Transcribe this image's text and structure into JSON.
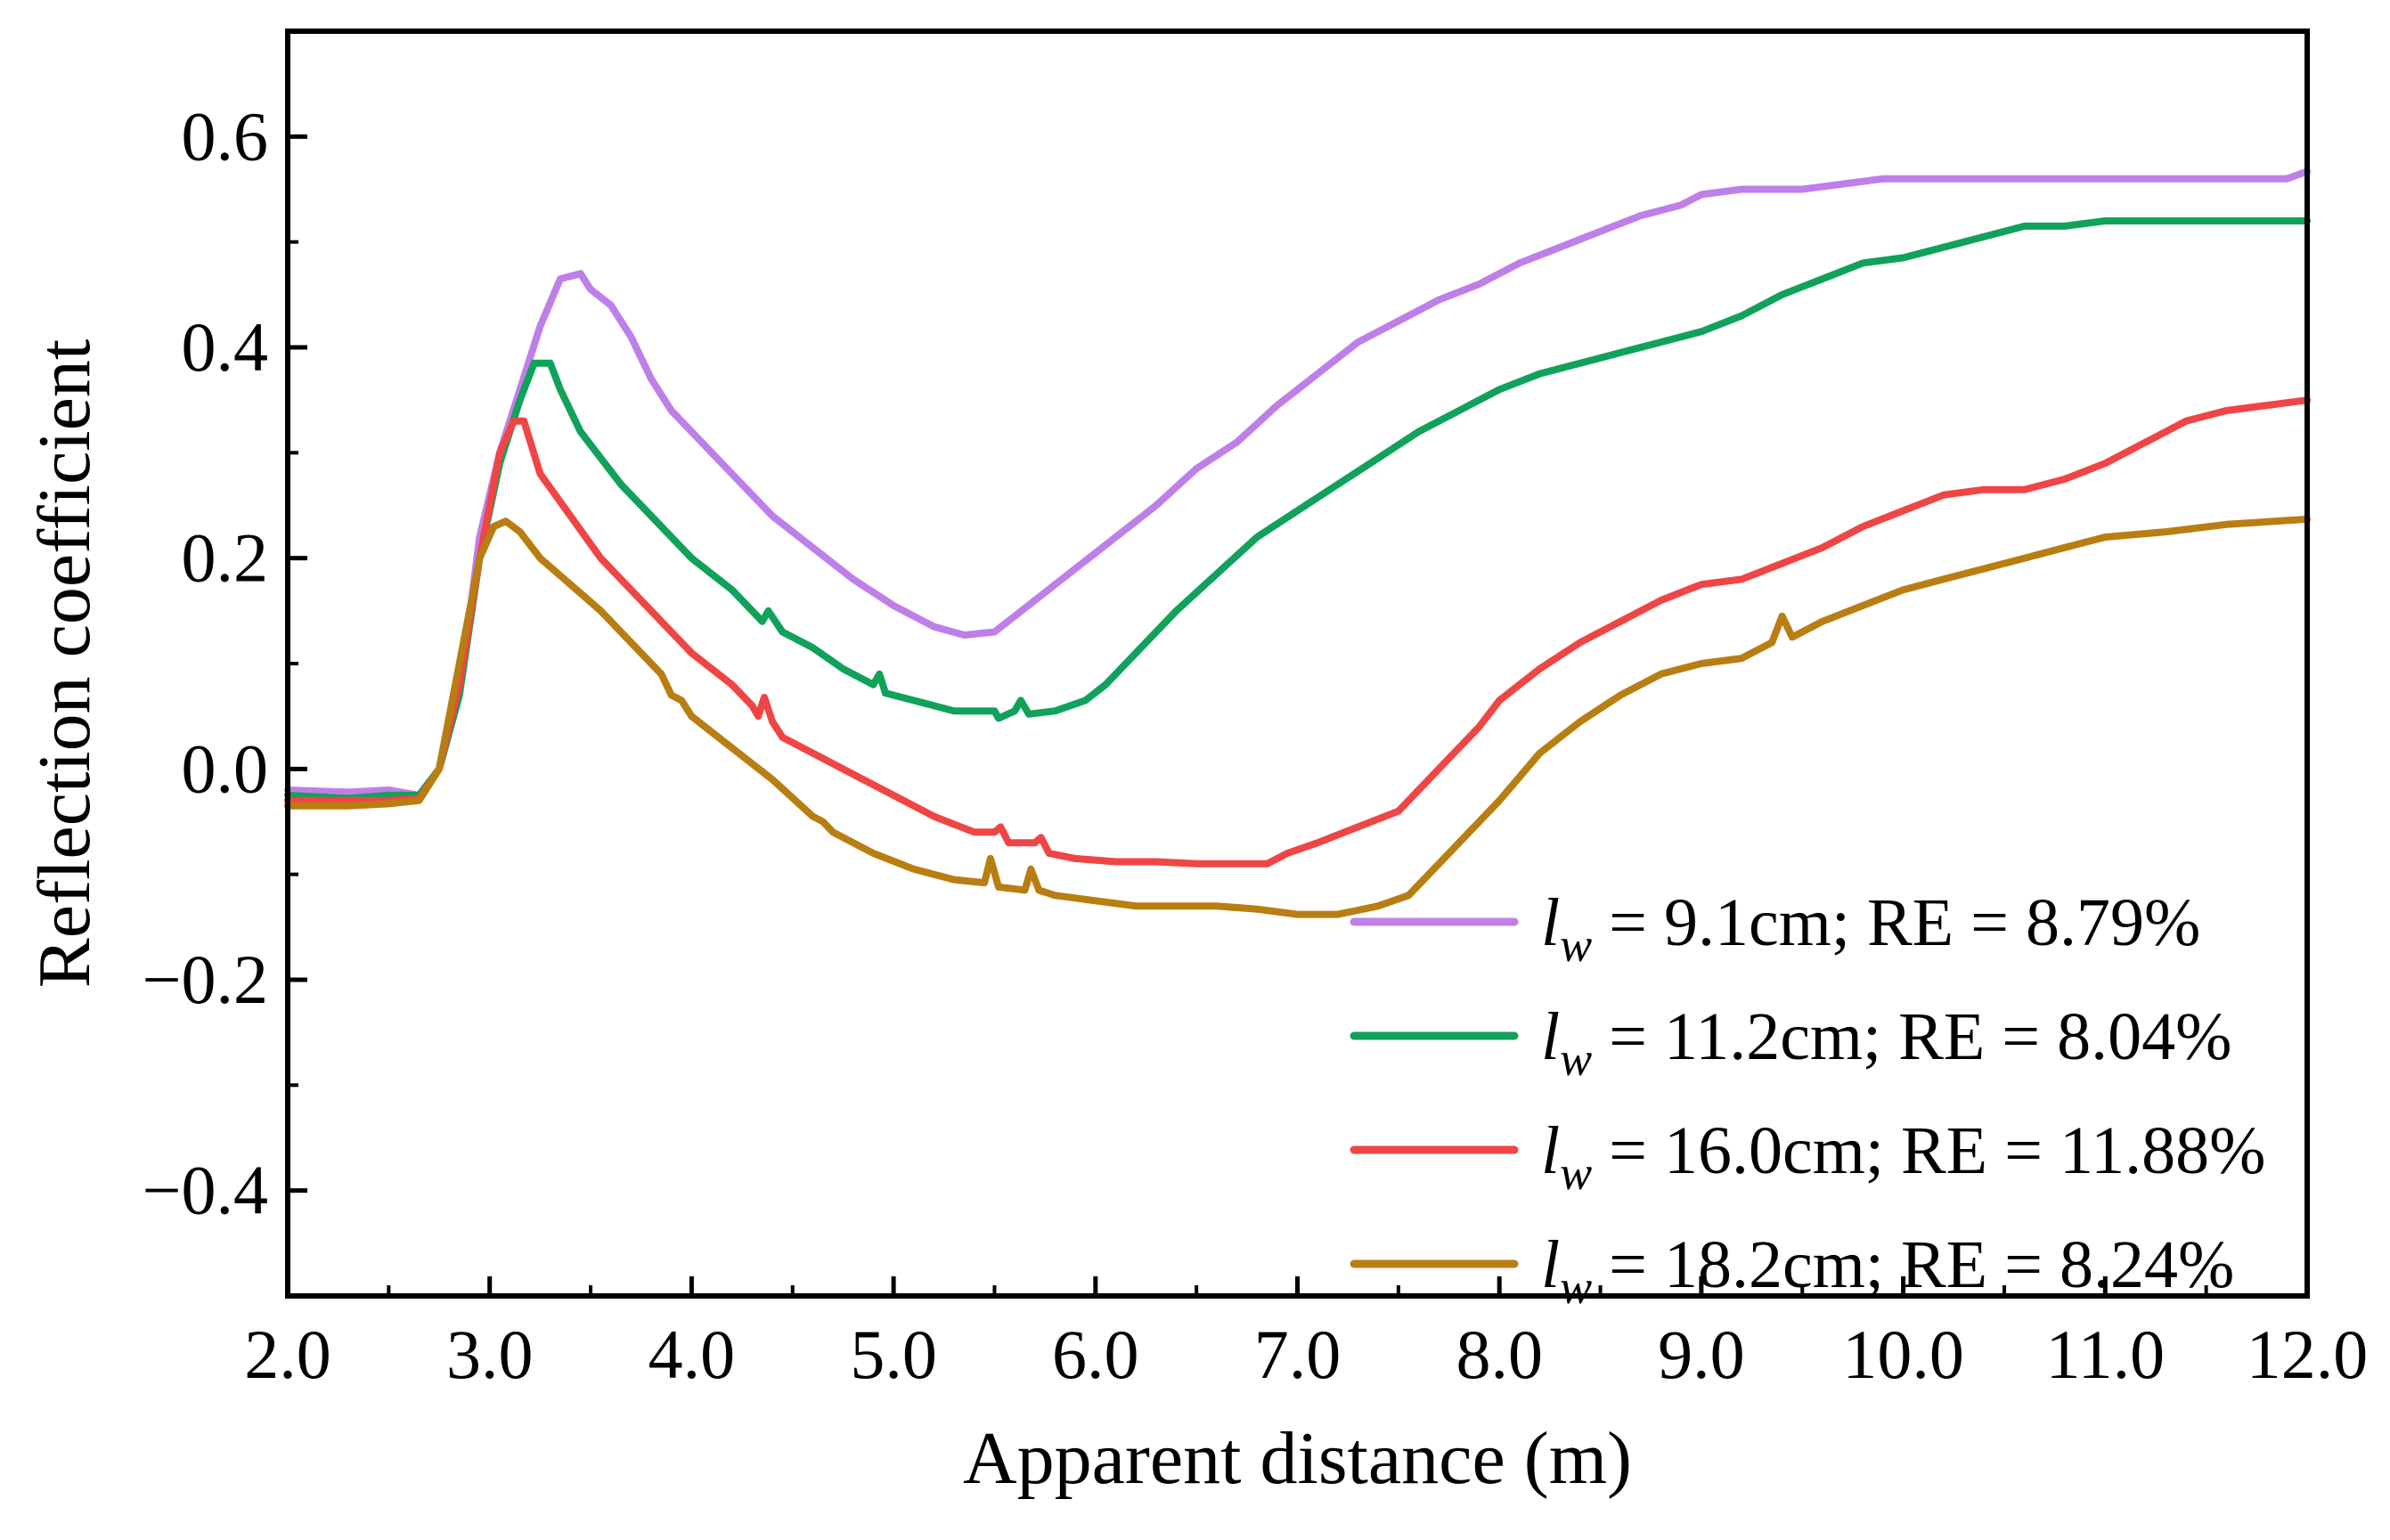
{
  "chart_data": {
    "type": "line",
    "xlabel": "Apparent distance (m)",
    "ylabel": "Reflection coefficient",
    "xlim": [
      2.0,
      12.0
    ],
    "ylim": [
      -0.5,
      0.7
    ],
    "x_ticks": [
      "2.0",
      "3.0",
      "4.0",
      "5.0",
      "6.0",
      "7.0",
      "8.0",
      "9.0",
      "10.0",
      "11.0",
      "12.0"
    ],
    "y_ticks": [
      "−0.4",
      "−0.2",
      "0.0",
      "0.2",
      "0.4",
      "0.6"
    ],
    "legend_position": "bottom-right",
    "series": [
      {
        "legend_var": "l",
        "legend_sub": "w",
        "legend_text": " = 9.1cm; RE = 8.79%",
        "color": "#bf7fe8",
        "points": [
          [
            2.0,
            -0.02
          ],
          [
            2.3,
            -0.022
          ],
          [
            2.5,
            -0.02
          ],
          [
            2.65,
            -0.025
          ],
          [
            2.75,
            0.0
          ],
          [
            2.85,
            0.07
          ],
          [
            2.95,
            0.22
          ],
          [
            3.05,
            0.3
          ],
          [
            3.15,
            0.36
          ],
          [
            3.25,
            0.42
          ],
          [
            3.35,
            0.465
          ],
          [
            3.45,
            0.47
          ],
          [
            3.5,
            0.455
          ],
          [
            3.6,
            0.44
          ],
          [
            3.7,
            0.41
          ],
          [
            3.8,
            0.37
          ],
          [
            3.9,
            0.34
          ],
          [
            4.0,
            0.32
          ],
          [
            4.2,
            0.28
          ],
          [
            4.4,
            0.24
          ],
          [
            4.6,
            0.21
          ],
          [
            4.8,
            0.18
          ],
          [
            5.0,
            0.155
          ],
          [
            5.2,
            0.135
          ],
          [
            5.35,
            0.127
          ],
          [
            5.5,
            0.13
          ],
          [
            5.7,
            0.16
          ],
          [
            5.9,
            0.19
          ],
          [
            6.1,
            0.22
          ],
          [
            6.3,
            0.25
          ],
          [
            6.5,
            0.285
          ],
          [
            6.7,
            0.31
          ],
          [
            6.9,
            0.345
          ],
          [
            7.1,
            0.375
          ],
          [
            7.3,
            0.405
          ],
          [
            7.5,
            0.425
          ],
          [
            7.7,
            0.445
          ],
          [
            7.9,
            0.46
          ],
          [
            8.1,
            0.48
          ],
          [
            8.3,
            0.495
          ],
          [
            8.5,
            0.51
          ],
          [
            8.7,
            0.525
          ],
          [
            8.9,
            0.535
          ],
          [
            9.0,
            0.545
          ],
          [
            9.2,
            0.55
          ],
          [
            9.5,
            0.55
          ],
          [
            9.7,
            0.555
          ],
          [
            9.9,
            0.56
          ],
          [
            10.5,
            0.56
          ],
          [
            11.0,
            0.56
          ],
          [
            11.9,
            0.56
          ],
          [
            12.0,
            0.567
          ]
        ]
      },
      {
        "legend_var": "l",
        "legend_sub": "w",
        "legend_text": " = 11.2cm; RE = 8.04%",
        "color": "#10a25a",
        "points": [
          [
            2.0,
            -0.025
          ],
          [
            2.3,
            -0.028
          ],
          [
            2.5,
            -0.025
          ],
          [
            2.65,
            -0.025
          ],
          [
            2.75,
            0.0
          ],
          [
            2.85,
            0.07
          ],
          [
            2.95,
            0.2
          ],
          [
            3.05,
            0.29
          ],
          [
            3.15,
            0.35
          ],
          [
            3.22,
            0.385
          ],
          [
            3.3,
            0.385
          ],
          [
            3.35,
            0.36
          ],
          [
            3.45,
            0.32
          ],
          [
            3.55,
            0.295
          ],
          [
            3.65,
            0.27
          ],
          [
            3.8,
            0.24
          ],
          [
            4.0,
            0.2
          ],
          [
            4.2,
            0.17
          ],
          [
            4.3,
            0.15
          ],
          [
            4.35,
            0.14
          ],
          [
            4.38,
            0.15
          ],
          [
            4.45,
            0.13
          ],
          [
            4.6,
            0.115
          ],
          [
            4.75,
            0.095
          ],
          [
            4.9,
            0.08
          ],
          [
            4.93,
            0.09
          ],
          [
            4.96,
            0.072
          ],
          [
            5.1,
            0.065
          ],
          [
            5.3,
            0.055
          ],
          [
            5.5,
            0.055
          ],
          [
            5.52,
            0.048
          ],
          [
            5.6,
            0.055
          ],
          [
            5.63,
            0.065
          ],
          [
            5.67,
            0.052
          ],
          [
            5.8,
            0.055
          ],
          [
            5.95,
            0.065
          ],
          [
            6.05,
            0.08
          ],
          [
            6.2,
            0.11
          ],
          [
            6.4,
            0.15
          ],
          [
            6.6,
            0.185
          ],
          [
            6.8,
            0.22
          ],
          [
            7.0,
            0.245
          ],
          [
            7.2,
            0.27
          ],
          [
            7.4,
            0.295
          ],
          [
            7.6,
            0.32
          ],
          [
            7.8,
            0.34
          ],
          [
            8.0,
            0.36
          ],
          [
            8.2,
            0.375
          ],
          [
            8.4,
            0.385
          ],
          [
            8.6,
            0.395
          ],
          [
            8.8,
            0.405
          ],
          [
            9.0,
            0.415
          ],
          [
            9.2,
            0.43
          ],
          [
            9.4,
            0.45
          ],
          [
            9.6,
            0.465
          ],
          [
            9.8,
            0.48
          ],
          [
            10.0,
            0.485
          ],
          [
            10.2,
            0.495
          ],
          [
            10.4,
            0.505
          ],
          [
            10.6,
            0.515
          ],
          [
            10.8,
            0.515
          ],
          [
            11.0,
            0.52
          ],
          [
            11.5,
            0.52
          ],
          [
            12.0,
            0.52
          ]
        ]
      },
      {
        "legend_var": "l",
        "legend_sub": "w",
        "legend_text": " = 16.0cm; RE = 11.88%",
        "color": "#f04545",
        "points": [
          [
            2.0,
            -0.03
          ],
          [
            2.3,
            -0.03
          ],
          [
            2.5,
            -0.03
          ],
          [
            2.65,
            -0.028
          ],
          [
            2.75,
            0.0
          ],
          [
            2.85,
            0.08
          ],
          [
            2.95,
            0.2
          ],
          [
            3.05,
            0.3
          ],
          [
            3.12,
            0.33
          ],
          [
            3.17,
            0.33
          ],
          [
            3.25,
            0.28
          ],
          [
            3.4,
            0.24
          ],
          [
            3.55,
            0.2
          ],
          [
            3.7,
            0.17
          ],
          [
            3.85,
            0.14
          ],
          [
            4.0,
            0.11
          ],
          [
            4.2,
            0.08
          ],
          [
            4.3,
            0.06
          ],
          [
            4.33,
            0.05
          ],
          [
            4.36,
            0.068
          ],
          [
            4.4,
            0.045
          ],
          [
            4.45,
            0.03
          ],
          [
            4.6,
            0.015
          ],
          [
            4.8,
            -0.005
          ],
          [
            5.0,
            -0.025
          ],
          [
            5.2,
            -0.045
          ],
          [
            5.4,
            -0.06
          ],
          [
            5.5,
            -0.06
          ],
          [
            5.53,
            -0.055
          ],
          [
            5.57,
            -0.07
          ],
          [
            5.7,
            -0.07
          ],
          [
            5.73,
            -0.065
          ],
          [
            5.77,
            -0.08
          ],
          [
            5.9,
            -0.085
          ],
          [
            6.1,
            -0.088
          ],
          [
            6.3,
            -0.088
          ],
          [
            6.5,
            -0.09
          ],
          [
            6.7,
            -0.09
          ],
          [
            6.85,
            -0.09
          ],
          [
            6.95,
            -0.08
          ],
          [
            7.1,
            -0.07
          ],
          [
            7.3,
            -0.055
          ],
          [
            7.5,
            -0.04
          ],
          [
            7.6,
            -0.02
          ],
          [
            7.75,
            0.01
          ],
          [
            7.9,
            0.04
          ],
          [
            8.0,
            0.065
          ],
          [
            8.2,
            0.095
          ],
          [
            8.4,
            0.12
          ],
          [
            8.6,
            0.14
          ],
          [
            8.8,
            0.16
          ],
          [
            9.0,
            0.175
          ],
          [
            9.2,
            0.18
          ],
          [
            9.4,
            0.195
          ],
          [
            9.6,
            0.21
          ],
          [
            9.8,
            0.23
          ],
          [
            10.0,
            0.245
          ],
          [
            10.2,
            0.26
          ],
          [
            10.4,
            0.265
          ],
          [
            10.6,
            0.265
          ],
          [
            10.8,
            0.275
          ],
          [
            11.0,
            0.29
          ],
          [
            11.2,
            0.31
          ],
          [
            11.4,
            0.33
          ],
          [
            11.6,
            0.34
          ],
          [
            11.8,
            0.345
          ],
          [
            12.0,
            0.35
          ]
        ]
      },
      {
        "legend_var": "l",
        "legend_sub": "w",
        "legend_text": " = 18.2cm; RE = 8.24%",
        "color": "#b87e12",
        "points": [
          [
            2.0,
            -0.035
          ],
          [
            2.3,
            -0.035
          ],
          [
            2.5,
            -0.033
          ],
          [
            2.65,
            -0.03
          ],
          [
            2.75,
            0.0
          ],
          [
            2.85,
            0.1
          ],
          [
            2.95,
            0.2
          ],
          [
            3.02,
            0.23
          ],
          [
            3.08,
            0.235
          ],
          [
            3.15,
            0.225
          ],
          [
            3.25,
            0.2
          ],
          [
            3.4,
            0.175
          ],
          [
            3.55,
            0.15
          ],
          [
            3.7,
            0.12
          ],
          [
            3.85,
            0.09
          ],
          [
            3.9,
            0.07
          ],
          [
            3.95,
            0.065
          ],
          [
            4.0,
            0.05
          ],
          [
            4.2,
            0.02
          ],
          [
            4.4,
            -0.01
          ],
          [
            4.6,
            -0.045
          ],
          [
            4.65,
            -0.05
          ],
          [
            4.7,
            -0.06
          ],
          [
            4.9,
            -0.08
          ],
          [
            5.1,
            -0.095
          ],
          [
            5.3,
            -0.105
          ],
          [
            5.45,
            -0.108
          ],
          [
            5.48,
            -0.085
          ],
          [
            5.52,
            -0.112
          ],
          [
            5.65,
            -0.115
          ],
          [
            5.68,
            -0.095
          ],
          [
            5.72,
            -0.115
          ],
          [
            5.8,
            -0.12
          ],
          [
            6.0,
            -0.125
          ],
          [
            6.2,
            -0.13
          ],
          [
            6.4,
            -0.13
          ],
          [
            6.6,
            -0.13
          ],
          [
            6.8,
            -0.133
          ],
          [
            7.0,
            -0.138
          ],
          [
            7.2,
            -0.138
          ],
          [
            7.4,
            -0.13
          ],
          [
            7.55,
            -0.12
          ],
          [
            7.65,
            -0.1
          ],
          [
            7.8,
            -0.07
          ],
          [
            8.0,
            -0.03
          ],
          [
            8.2,
            0.015
          ],
          [
            8.4,
            0.045
          ],
          [
            8.6,
            0.07
          ],
          [
            8.8,
            0.09
          ],
          [
            9.0,
            0.1
          ],
          [
            9.2,
            0.105
          ],
          [
            9.35,
            0.12
          ],
          [
            9.4,
            0.145
          ],
          [
            9.45,
            0.125
          ],
          [
            9.6,
            0.14
          ],
          [
            9.8,
            0.155
          ],
          [
            10.0,
            0.17
          ],
          [
            10.2,
            0.18
          ],
          [
            10.4,
            0.19
          ],
          [
            10.6,
            0.2
          ],
          [
            10.8,
            0.21
          ],
          [
            11.0,
            0.22
          ],
          [
            11.3,
            0.225
          ],
          [
            11.6,
            0.232
          ],
          [
            12.0,
            0.237
          ]
        ]
      }
    ]
  }
}
